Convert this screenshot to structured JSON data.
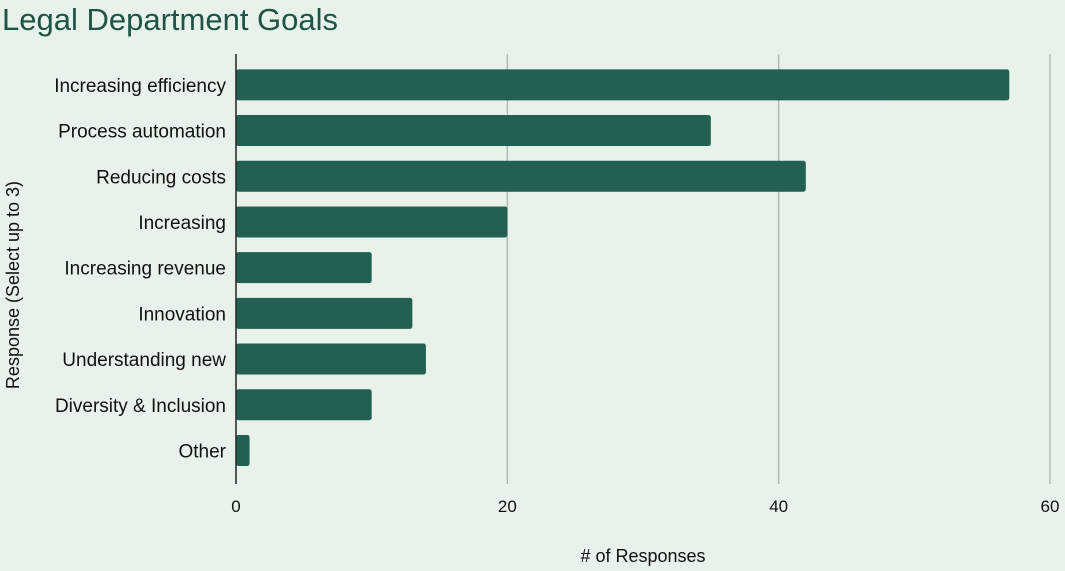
{
  "colors": {
    "background": "#e8f2ea",
    "bar": "#226052",
    "title": "#1d5445"
  },
  "chart_data": {
    "type": "bar",
    "orientation": "horizontal",
    "title": "Legal Department Goals",
    "xlabel": "# of Responses",
    "ylabel": "Response (Select up to 3)",
    "categories": [
      "Increasing efficiency",
      "Process automation",
      "Reducing costs",
      "Increasing",
      "Increasing revenue",
      "Innovation",
      "Understanding new",
      "Diversity & Inclusion",
      "Other"
    ],
    "values": [
      57,
      35,
      42,
      20,
      10,
      13,
      14,
      10,
      1
    ],
    "xlim": [
      0,
      60
    ],
    "xticks": [
      0,
      20,
      40,
      60
    ],
    "grid": "vertical"
  }
}
